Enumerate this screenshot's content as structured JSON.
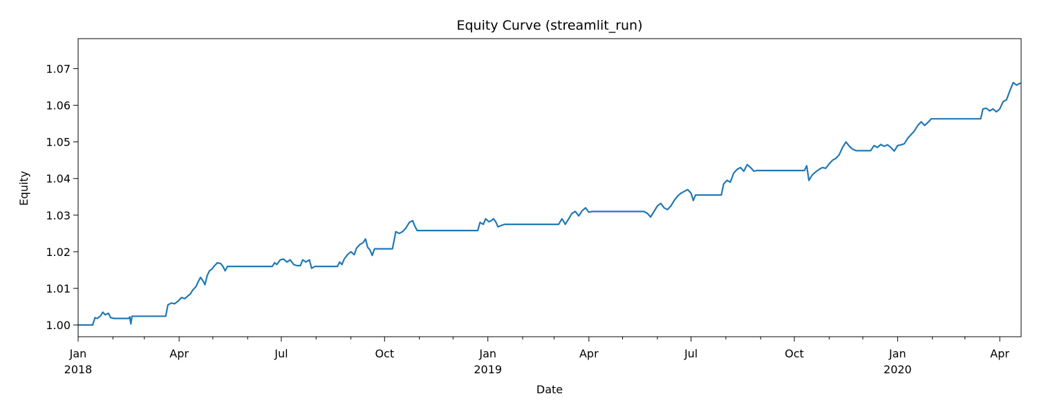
{
  "chart_data": {
    "type": "line",
    "title": "Equity Curve (streamlit_run)",
    "xlabel": "Date",
    "ylabel": "Equity",
    "xlim": [
      "2018-01-01",
      "2020-04-20"
    ],
    "ylim": [
      0.9968,
      1.0782
    ],
    "grid": false,
    "legend": "none",
    "x_major_ticks": [
      {
        "date": "2018-01-01",
        "label": "Jan",
        "sublabel": "2018"
      },
      {
        "date": "2018-04-01",
        "label": "Apr",
        "sublabel": ""
      },
      {
        "date": "2018-07-01",
        "label": "Jul",
        "sublabel": ""
      },
      {
        "date": "2018-10-01",
        "label": "Oct",
        "sublabel": ""
      },
      {
        "date": "2019-01-01",
        "label": "Jan",
        "sublabel": "2019"
      },
      {
        "date": "2019-04-01",
        "label": "Apr",
        "sublabel": ""
      },
      {
        "date": "2019-07-01",
        "label": "Jul",
        "sublabel": ""
      },
      {
        "date": "2019-10-01",
        "label": "Oct",
        "sublabel": ""
      },
      {
        "date": "2020-01-01",
        "label": "Jan",
        "sublabel": "2020"
      },
      {
        "date": "2020-04-01",
        "label": "Apr",
        "sublabel": ""
      }
    ],
    "x_minor_ticks": [
      "2018-02-01",
      "2018-03-01",
      "2018-05-01",
      "2018-06-01",
      "2018-08-01",
      "2018-09-01",
      "2018-11-01",
      "2018-12-01",
      "2019-02-01",
      "2019-03-01",
      "2019-05-01",
      "2019-06-01",
      "2019-08-01",
      "2019-09-01",
      "2019-11-01",
      "2019-12-01",
      "2020-02-01",
      "2020-03-01"
    ],
    "y_ticks": [
      {
        "value": 1.0,
        "label": "1.00"
      },
      {
        "value": 1.01,
        "label": "1.01"
      },
      {
        "value": 1.02,
        "label": "1.02"
      },
      {
        "value": 1.03,
        "label": "1.03"
      },
      {
        "value": 1.04,
        "label": "1.04"
      },
      {
        "value": 1.05,
        "label": "1.05"
      },
      {
        "value": 1.06,
        "label": "1.06"
      },
      {
        "value": 1.07,
        "label": "1.07"
      }
    ],
    "series": [
      {
        "color": "#1f77b4",
        "points": [
          [
            "2018-01-01",
            1.0
          ],
          [
            "2018-01-14",
            1.0
          ],
          [
            "2018-01-16",
            1.002
          ],
          [
            "2018-01-18",
            1.0018
          ],
          [
            "2018-01-21",
            1.0025
          ],
          [
            "2018-01-23",
            1.0035
          ],
          [
            "2018-01-25",
            1.0028
          ],
          [
            "2018-01-28",
            1.0032
          ],
          [
            "2018-01-30",
            1.002
          ],
          [
            "2018-02-02",
            1.0018
          ],
          [
            "2018-02-05",
            1.0018
          ],
          [
            "2018-02-15",
            1.0018
          ],
          [
            "2018-02-16",
            1.0022
          ],
          [
            "2018-02-17",
            1.0003
          ],
          [
            "2018-02-18",
            1.0024
          ],
          [
            "2018-03-20",
            1.0024
          ],
          [
            "2018-03-22",
            1.0055
          ],
          [
            "2018-03-25",
            1.006
          ],
          [
            "2018-03-28",
            1.0058
          ],
          [
            "2018-03-31",
            1.0065
          ],
          [
            "2018-04-03",
            1.0075
          ],
          [
            "2018-04-06",
            1.0072
          ],
          [
            "2018-04-09",
            1.008
          ],
          [
            "2018-04-11",
            1.0085
          ],
          [
            "2018-04-13",
            1.0095
          ],
          [
            "2018-04-16",
            1.0105
          ],
          [
            "2018-04-18",
            1.0118
          ],
          [
            "2018-04-20",
            1.013
          ],
          [
            "2018-04-22",
            1.0122
          ],
          [
            "2018-04-24",
            1.011
          ],
          [
            "2018-04-26",
            1.0135
          ],
          [
            "2018-04-28",
            1.0148
          ],
          [
            "2018-04-30",
            1.0152
          ],
          [
            "2018-05-02",
            1.016
          ],
          [
            "2018-05-05",
            1.017
          ],
          [
            "2018-05-08",
            1.0168
          ],
          [
            "2018-05-10",
            1.016
          ],
          [
            "2018-05-12",
            1.0148
          ],
          [
            "2018-05-14",
            1.016
          ],
          [
            "2018-06-23",
            1.016
          ],
          [
            "2018-06-25",
            1.017
          ],
          [
            "2018-06-27",
            1.0165
          ],
          [
            "2018-06-30",
            1.0178
          ],
          [
            "2018-07-03",
            1.018
          ],
          [
            "2018-07-06",
            1.0172
          ],
          [
            "2018-07-09",
            1.0178
          ],
          [
            "2018-07-12",
            1.0165
          ],
          [
            "2018-07-15",
            1.0162
          ],
          [
            "2018-07-18",
            1.0162
          ],
          [
            "2018-07-20",
            1.0178
          ],
          [
            "2018-07-23",
            1.0172
          ],
          [
            "2018-07-26",
            1.0178
          ],
          [
            "2018-07-28",
            1.0155
          ],
          [
            "2018-07-31",
            1.016
          ],
          [
            "2018-08-20",
            1.016
          ],
          [
            "2018-08-22",
            1.0172
          ],
          [
            "2018-08-24",
            1.0165
          ],
          [
            "2018-08-26",
            1.018
          ],
          [
            "2018-08-29",
            1.0192
          ],
          [
            "2018-09-01",
            1.02
          ],
          [
            "2018-09-04",
            1.0192
          ],
          [
            "2018-09-06",
            1.021
          ],
          [
            "2018-09-09",
            1.022
          ],
          [
            "2018-09-12",
            1.0225
          ],
          [
            "2018-09-14",
            1.0235
          ],
          [
            "2018-09-16",
            1.0212
          ],
          [
            "2018-09-18",
            1.0205
          ],
          [
            "2018-09-20",
            1.019
          ],
          [
            "2018-09-22",
            1.0208
          ],
          [
            "2018-10-08",
            1.0208
          ],
          [
            "2018-10-11",
            1.0255
          ],
          [
            "2018-10-14",
            1.025
          ],
          [
            "2018-10-17",
            1.0255
          ],
          [
            "2018-10-20",
            1.0265
          ],
          [
            "2018-10-23",
            1.028
          ],
          [
            "2018-10-26",
            1.0285
          ],
          [
            "2018-10-28",
            1.027
          ],
          [
            "2018-10-30",
            1.0258
          ],
          [
            "2018-12-23",
            1.0258
          ],
          [
            "2018-12-25",
            1.028
          ],
          [
            "2018-12-28",
            1.0275
          ],
          [
            "2018-12-30",
            1.029
          ],
          [
            "2019-01-02",
            1.0282
          ],
          [
            "2019-01-04",
            1.0285
          ],
          [
            "2019-01-06",
            1.029
          ],
          [
            "2019-01-08",
            1.0282
          ],
          [
            "2019-01-10",
            1.0268
          ],
          [
            "2019-01-13",
            1.0272
          ],
          [
            "2019-01-16",
            1.0275
          ],
          [
            "2019-03-05",
            1.0275
          ],
          [
            "2019-03-08",
            1.029
          ],
          [
            "2019-03-11",
            1.0275
          ],
          [
            "2019-03-14",
            1.029
          ],
          [
            "2019-03-17",
            1.0305
          ],
          [
            "2019-03-20",
            1.031
          ],
          [
            "2019-03-23",
            1.0298
          ],
          [
            "2019-03-26",
            1.0312
          ],
          [
            "2019-03-29",
            1.032
          ],
          [
            "2019-04-01",
            1.0308
          ],
          [
            "2019-04-04",
            1.031
          ],
          [
            "2019-05-20",
            1.031
          ],
          [
            "2019-05-23",
            1.0305
          ],
          [
            "2019-05-26",
            1.0295
          ],
          [
            "2019-05-29",
            1.031
          ],
          [
            "2019-06-01",
            1.0325
          ],
          [
            "2019-06-04",
            1.0332
          ],
          [
            "2019-06-07",
            1.032
          ],
          [
            "2019-06-10",
            1.0315
          ],
          [
            "2019-06-13",
            1.0325
          ],
          [
            "2019-06-16",
            1.034
          ],
          [
            "2019-06-19",
            1.0352
          ],
          [
            "2019-06-22",
            1.036
          ],
          [
            "2019-06-25",
            1.0365
          ],
          [
            "2019-06-28",
            1.037
          ],
          [
            "2019-07-01",
            1.036
          ],
          [
            "2019-07-03",
            1.034
          ],
          [
            "2019-07-05",
            1.0355
          ],
          [
            "2019-07-08",
            1.0355
          ],
          [
            "2019-07-28",
            1.0355
          ],
          [
            "2019-07-30",
            1.0385
          ],
          [
            "2019-08-02",
            1.0395
          ],
          [
            "2019-08-05",
            1.039
          ],
          [
            "2019-08-08",
            1.0415
          ],
          [
            "2019-08-11",
            1.0425
          ],
          [
            "2019-08-14",
            1.043
          ],
          [
            "2019-08-17",
            1.042
          ],
          [
            "2019-08-20",
            1.0438
          ],
          [
            "2019-08-23",
            1.043
          ],
          [
            "2019-08-26",
            1.042
          ],
          [
            "2019-08-29",
            1.0422
          ],
          [
            "2019-10-10",
            1.0422
          ],
          [
            "2019-10-12",
            1.0435
          ],
          [
            "2019-10-14",
            1.0395
          ],
          [
            "2019-10-17",
            1.041
          ],
          [
            "2019-10-20",
            1.0418
          ],
          [
            "2019-10-23",
            1.0425
          ],
          [
            "2019-10-26",
            1.043
          ],
          [
            "2019-10-29",
            1.0428
          ],
          [
            "2019-11-01",
            1.044
          ],
          [
            "2019-11-04",
            1.045
          ],
          [
            "2019-11-07",
            1.0455
          ],
          [
            "2019-11-10",
            1.0465
          ],
          [
            "2019-11-13",
            1.0485
          ],
          [
            "2019-11-16",
            1.05
          ],
          [
            "2019-11-19",
            1.0488
          ],
          [
            "2019-11-22",
            1.048
          ],
          [
            "2019-11-25",
            1.0476
          ],
          [
            "2019-12-08",
            1.0476
          ],
          [
            "2019-12-11",
            1.049
          ],
          [
            "2019-12-14",
            1.0485
          ],
          [
            "2019-12-17",
            1.0493
          ],
          [
            "2019-12-20",
            1.0488
          ],
          [
            "2019-12-23",
            1.0492
          ],
          [
            "2019-12-26",
            1.0485
          ],
          [
            "2019-12-29",
            1.0475
          ],
          [
            "2020-01-01",
            1.049
          ],
          [
            "2020-01-04",
            1.0492
          ],
          [
            "2020-01-07",
            1.0495
          ],
          [
            "2020-01-10",
            1.051
          ],
          [
            "2020-01-13",
            1.052
          ],
          [
            "2020-01-16",
            1.053
          ],
          [
            "2020-01-19",
            1.0545
          ],
          [
            "2020-01-22",
            1.0555
          ],
          [
            "2020-01-25",
            1.0545
          ],
          [
            "2020-01-28",
            1.0553
          ],
          [
            "2020-01-31",
            1.0563
          ],
          [
            "2020-02-20",
            1.0563
          ],
          [
            "2020-03-15",
            1.0563
          ],
          [
            "2020-03-17",
            1.059
          ],
          [
            "2020-03-20",
            1.0592
          ],
          [
            "2020-03-23",
            1.0585
          ],
          [
            "2020-03-26",
            1.059
          ],
          [
            "2020-03-29",
            1.0582
          ],
          [
            "2020-04-01",
            1.059
          ],
          [
            "2020-04-04",
            1.061
          ],
          [
            "2020-04-07",
            1.0615
          ],
          [
            "2020-04-10",
            1.064
          ],
          [
            "2020-04-13",
            1.0662
          ],
          [
            "2020-04-16",
            1.0655
          ],
          [
            "2020-04-19",
            1.066
          ]
        ]
      }
    ]
  }
}
